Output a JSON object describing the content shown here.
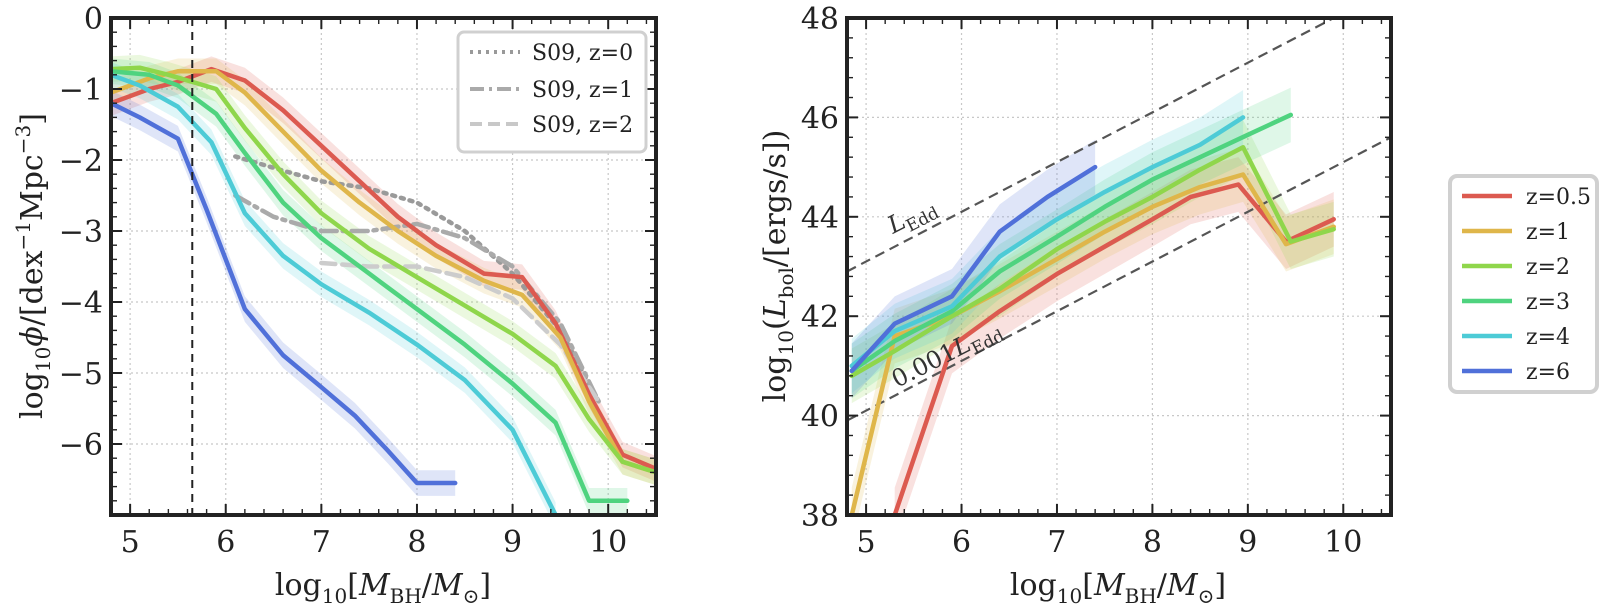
{
  "colors": {
    "z=0.5": "#dc5a50",
    "z=1": "#dfb64a",
    "z=2": "#8fd64b",
    "z=3": "#4fd37f",
    "z=4": "#4dcbd6",
    "z=6": "#5070d9",
    "S09": "#a8a8a8"
  },
  "chart_data": [
    {
      "type": "line",
      "id": "bhmf",
      "xlabel": "log10[M_BH/M_sun]",
      "ylabel": "log10 phi/[dex^-1 Mpc^-3]",
      "xlim": [
        4.8,
        10.5
      ],
      "ylim": [
        -7.0,
        0.0
      ],
      "xticks": [
        5,
        6,
        7,
        8,
        9,
        10
      ],
      "yticks": [
        0,
        -1,
        -2,
        -3,
        -4,
        -5,
        -6
      ],
      "xtick_labels": [
        "5",
        "6",
        "7",
        "8",
        "9",
        "10"
      ],
      "ytick_labels": [
        "0",
        "−1",
        "−2",
        "−3",
        "−4",
        "−5",
        "−6"
      ],
      "grid": true,
      "vline": 5.65,
      "legend_position": "top-right",
      "series": [
        {
          "name": "z=0.5",
          "color_key": "z=0.5",
          "x": [
            4.8,
            5.2,
            5.5,
            5.85,
            6.2,
            6.6,
            7.0,
            7.4,
            7.8,
            8.2,
            8.7,
            9.1,
            9.45,
            9.8,
            10.15,
            10.5
          ],
          "y": [
            -1.2,
            -1.0,
            -0.9,
            -0.72,
            -0.88,
            -1.3,
            -1.8,
            -2.3,
            -2.8,
            -3.2,
            -3.6,
            -3.65,
            -4.3,
            -5.3,
            -6.15,
            -6.35
          ]
        },
        {
          "name": "z=1",
          "color_key": "z=1",
          "x": [
            4.8,
            5.2,
            5.5,
            5.9,
            6.2,
            6.6,
            7.0,
            7.4,
            7.8,
            8.2,
            8.7,
            9.1,
            9.5,
            9.8,
            10.15,
            10.5
          ],
          "y": [
            -1.05,
            -0.85,
            -0.75,
            -0.75,
            -1.05,
            -1.6,
            -2.15,
            -2.6,
            -3.0,
            -3.35,
            -3.7,
            -3.9,
            -4.5,
            -5.4,
            -6.25,
            -6.4
          ]
        },
        {
          "name": "z=2",
          "color_key": "z=2",
          "x": [
            4.8,
            5.1,
            5.4,
            5.9,
            6.2,
            6.6,
            7.0,
            7.5,
            8.0,
            8.5,
            9.0,
            9.45,
            9.8,
            10.15,
            10.5
          ],
          "y": [
            -0.72,
            -0.7,
            -0.8,
            -1.0,
            -1.55,
            -2.2,
            -2.75,
            -3.25,
            -3.65,
            -4.05,
            -4.45,
            -4.9,
            -5.65,
            -6.25,
            -6.4
          ]
        },
        {
          "name": "z=3",
          "color_key": "z=3",
          "x": [
            4.8,
            5.2,
            5.5,
            5.9,
            6.2,
            6.6,
            7.0,
            7.5,
            8.0,
            8.5,
            9.0,
            9.45,
            9.8,
            10.2
          ],
          "y": [
            -0.75,
            -0.8,
            -0.95,
            -1.35,
            -1.9,
            -2.6,
            -3.1,
            -3.6,
            -4.1,
            -4.6,
            -5.15,
            -5.7,
            -6.8,
            -6.8
          ]
        },
        {
          "name": "z=4",
          "color_key": "z=4",
          "x": [
            4.8,
            5.1,
            5.5,
            5.85,
            6.2,
            6.6,
            7.0,
            7.5,
            8.0,
            8.5,
            9.0,
            9.45
          ],
          "y": [
            -0.8,
            -0.95,
            -1.25,
            -1.75,
            -2.75,
            -3.35,
            -3.75,
            -4.15,
            -4.6,
            -5.1,
            -5.8,
            -7.0
          ]
        },
        {
          "name": "z=6",
          "color_key": "z=6",
          "x": [
            4.8,
            5.1,
            5.5,
            5.8,
            6.2,
            6.6,
            7.0,
            7.35,
            7.7,
            8.0,
            8.4
          ],
          "y": [
            -1.2,
            -1.4,
            -1.7,
            -2.7,
            -4.1,
            -4.75,
            -5.2,
            -5.6,
            -6.1,
            -6.55,
            -6.55
          ]
        }
      ],
      "reference_series": [
        {
          "name": "S09, z=0",
          "style": "dotted",
          "x": [
            6.1,
            6.6,
            7.0,
            7.5,
            8.0,
            8.5,
            9.0,
            9.5,
            9.9
          ],
          "y": [
            -1.95,
            -2.15,
            -2.3,
            -2.4,
            -2.6,
            -3.0,
            -3.6,
            -4.4,
            -5.4
          ]
        },
        {
          "name": "S09, z=1",
          "style": "dashdot",
          "x": [
            6.1,
            6.5,
            7.0,
            7.5,
            8.0,
            8.5,
            9.0,
            9.5,
            9.9
          ],
          "y": [
            -2.5,
            -2.8,
            -3.0,
            -3.0,
            -2.9,
            -3.1,
            -3.5,
            -4.3,
            -5.4
          ]
        },
        {
          "name": "S09, z=2",
          "style": "dashed",
          "x": [
            7.0,
            7.5,
            8.0,
            8.5,
            9.0,
            9.5,
            9.9
          ],
          "y": [
            -3.45,
            -3.5,
            -3.5,
            -3.65,
            -3.95,
            -4.6,
            -5.4
          ]
        }
      ],
      "legend": [
        "S09, z=0",
        "S09, z=1",
        "S09, z=2"
      ]
    },
    {
      "type": "line",
      "id": "lbol",
      "xlabel": "log10[M_BH/M_sun]",
      "ylabel": "log10(L_bol/[ergs/s])",
      "xlim": [
        4.8,
        10.5
      ],
      "ylim": [
        38,
        48
      ],
      "xticks": [
        5,
        6,
        7,
        8,
        9,
        10
      ],
      "yticks": [
        38,
        40,
        42,
        44,
        46,
        48
      ],
      "xtick_labels": [
        "5",
        "6",
        "7",
        "8",
        "9",
        "10"
      ],
      "ytick_labels": [
        "38",
        "40",
        "42",
        "44",
        "46",
        "48"
      ],
      "grid": true,
      "legend_position": "outside-right",
      "reference_lines": [
        {
          "label": "L_Edd",
          "intercept": 38.1,
          "slope": 1.0
        },
        {
          "label": "0.001 L_Edd",
          "intercept": 35.1,
          "slope": 1.0
        }
      ],
      "series": [
        {
          "name": "z=0.5",
          "color_key": "z=0.5",
          "x": [
            5.3,
            5.9,
            6.4,
            7.0,
            7.5,
            8.0,
            8.4,
            8.9,
            9.4,
            9.9
          ],
          "y": [
            38.0,
            41.4,
            42.1,
            42.85,
            43.4,
            43.95,
            44.4,
            44.65,
            43.5,
            43.95
          ]
        },
        {
          "name": "z=1",
          "color_key": "z=1",
          "x": [
            4.85,
            5.3,
            5.9,
            6.4,
            7.0,
            7.5,
            8.0,
            8.5,
            8.95,
            9.4,
            9.9
          ],
          "y": [
            38.0,
            41.6,
            42.0,
            42.5,
            43.15,
            43.7,
            44.2,
            44.6,
            44.85,
            43.45,
            43.8
          ]
        },
        {
          "name": "z=2",
          "color_key": "z=2",
          "x": [
            4.85,
            5.3,
            5.9,
            6.4,
            7.0,
            7.5,
            8.0,
            8.5,
            8.95,
            9.45,
            9.9
          ],
          "y": [
            40.8,
            41.3,
            42.0,
            42.55,
            43.35,
            43.9,
            44.4,
            44.95,
            45.4,
            43.5,
            43.75
          ]
        },
        {
          "name": "z=3",
          "color_key": "z=3",
          "x": [
            4.85,
            5.3,
            5.9,
            6.4,
            7.0,
            7.5,
            8.0,
            8.5,
            9.0,
            9.45
          ],
          "y": [
            40.9,
            41.5,
            42.1,
            42.9,
            43.6,
            44.2,
            44.75,
            45.2,
            45.65,
            46.05
          ]
        },
        {
          "name": "z=4",
          "color_key": "z=4",
          "x": [
            4.85,
            5.3,
            5.9,
            6.4,
            7.0,
            7.5,
            8.0,
            8.5,
            8.95
          ],
          "y": [
            41.0,
            41.7,
            42.2,
            43.2,
            43.95,
            44.5,
            45.0,
            45.45,
            46.0
          ]
        },
        {
          "name": "z=6",
          "color_key": "z=6",
          "x": [
            4.85,
            5.3,
            5.9,
            6.4,
            6.9,
            7.4
          ],
          "y": [
            40.9,
            41.85,
            42.4,
            43.7,
            44.4,
            45.0
          ]
        }
      ]
    }
  ],
  "legend_outside": [
    "z=0.5",
    "z=1",
    "z=2",
    "z=3",
    "z=4",
    "z=6"
  ]
}
